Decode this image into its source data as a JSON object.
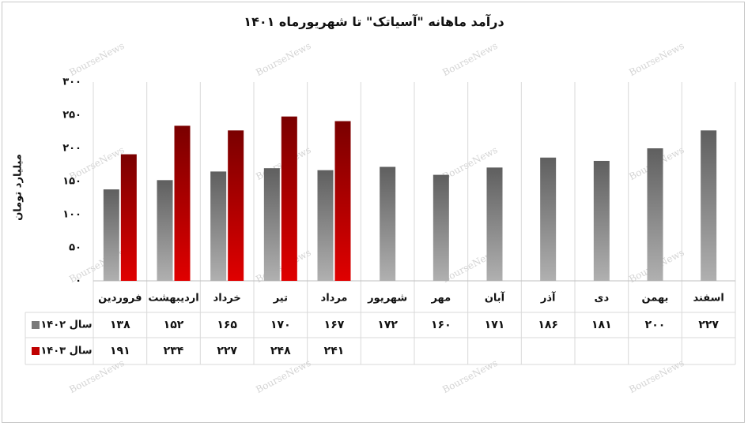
{
  "watermark": "BourseNews",
  "chart_data": {
    "type": "bar",
    "title": "درآمد ماهانه \"آسیاتک\" تا شهریورماه ۱۴۰۱",
    "ylabel": "میلیارد تومان",
    "xlabel": "",
    "ylim": [
      0,
      300
    ],
    "yticks": [
      "۰",
      "۵۰",
      "۱۰۰",
      "۱۵۰",
      "۲۰۰",
      "۲۵۰",
      "۳۰۰"
    ],
    "ytick_values": [
      0,
      50,
      100,
      150,
      200,
      250,
      300
    ],
    "grid": true,
    "categories": [
      "فروردین",
      "اردیبهشت",
      "خرداد",
      "تیر",
      "مرداد",
      "شهریور",
      "مهر",
      "آبان",
      "آذر",
      "دی",
      "بهمن",
      "اسفند"
    ],
    "series": [
      {
        "name": "سال ۱۴۰۲",
        "color": "#7a7a7a",
        "values": [
          138,
          152,
          165,
          170,
          167,
          172,
          160,
          171,
          186,
          181,
          200,
          227
        ],
        "labels": [
          "۱۳۸",
          "۱۵۲",
          "۱۶۵",
          "۱۷۰",
          "۱۶۷",
          "۱۷۲",
          "۱۶۰",
          "۱۷۱",
          "۱۸۶",
          "۱۸۱",
          "۲۰۰",
          "۲۲۷"
        ]
      },
      {
        "name": "سال ۱۴۰۳",
        "color": "#c00000",
        "values": [
          191,
          234,
          227,
          248,
          241,
          null,
          null,
          null,
          null,
          null,
          null,
          null
        ],
        "labels": [
          "۱۹۱",
          "۲۳۴",
          "۲۲۷",
          "۲۴۸",
          "۲۴۱",
          "",
          "",
          "",
          "",
          "",
          "",
          ""
        ]
      }
    ],
    "data_table": true
  }
}
